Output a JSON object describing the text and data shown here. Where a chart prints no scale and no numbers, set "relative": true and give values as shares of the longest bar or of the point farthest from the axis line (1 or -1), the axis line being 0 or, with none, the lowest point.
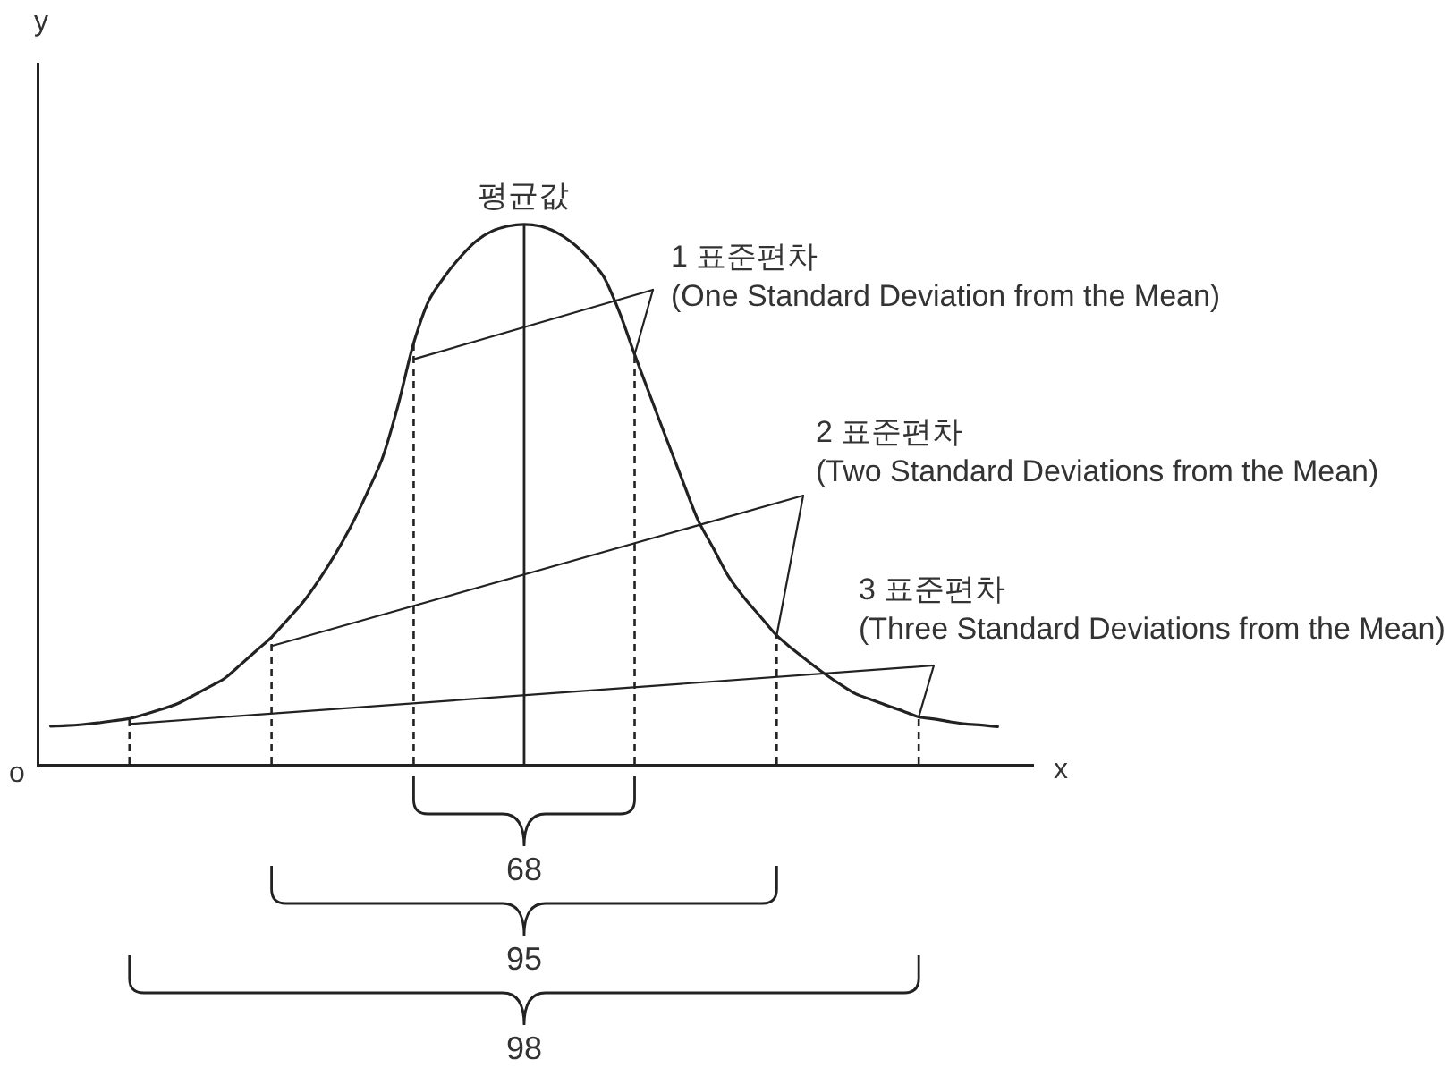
{
  "chart_data": {
    "type": "line",
    "relative": true,
    "xlabel": "x",
    "color": "#222222",
    "categories": [
      null,
      null,
      null,
      null,
      null,
      null,
      null,
      null,
      null,
      null,
      null,
      null,
      null,
      null,
      null,
      null,
      null,
      null,
      null,
      null,
      null,
      null,
      null,
      null,
      null,
      null,
      null,
      null,
      null,
      null,
      null,
      null,
      null,
      null,
      null,
      null,
      null,
      null,
      null,
      null,
      null,
      null,
      null,
      null,
      null,
      null,
      null,
      null,
      null,
      null,
      null,
      null,
      null,
      null,
      null,
      null,
      null,
      null,
      null,
      null,
      null
    ],
    "values": [
      0.07,
      0.071,
      0.073,
      0.076,
      0.08,
      0.084,
      0.092,
      0.101,
      0.111,
      0.126,
      0.142,
      0.158,
      0.183,
      0.209,
      0.235,
      0.267,
      0.3,
      0.341,
      0.387,
      0.439,
      0.499,
      0.565,
      0.663,
      0.78,
      0.861,
      0.905,
      0.941,
      0.97,
      0.988,
      0.997,
      1,
      0.997,
      0.986,
      0.967,
      0.94,
      0.905,
      0.84,
      0.759,
      0.681,
      0.604,
      0.528,
      0.453,
      0.399,
      0.345,
      0.306,
      0.272,
      0.238,
      0.213,
      0.19,
      0.168,
      0.148,
      0.13,
      0.119,
      0.108,
      0.098,
      0.087,
      0.083,
      0.078,
      0.074,
      0.072,
      0.069
    ],
    "annotations": [
      "y",
      "평균값",
      "1 표준편차\n(One Standard Deviation from the Mean)",
      "2 표준편차\n(Two Standard Deviations from the Mean)",
      "3 표준편차\n(Three Standard Deviations from the Mean)",
      "o",
      "68",
      "95",
      "98"
    ]
  }
}
